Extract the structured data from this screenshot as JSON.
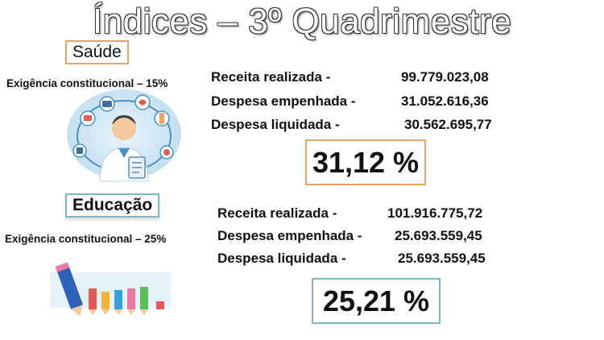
{
  "title": "Índices – 3º Quadrimestre",
  "saude": {
    "label": "Saúde",
    "requirement": "Exigência constitucional – 15%",
    "rows": [
      {
        "label": "Receita realizada  -",
        "value": "99.779.023,08"
      },
      {
        "label": "Despesa empenhada -",
        "value": "31.052.616,36"
      },
      {
        "label": "Despesa liquidada -",
        "value": "30.562.695,77"
      }
    ],
    "percentage": "31,12 %",
    "illustration_icon": "doctor-medical-icons",
    "accent_color": "#e8a367"
  },
  "educacao": {
    "label": "Educação",
    "requirement": "Exigência constitucional – 25%",
    "rows": [
      {
        "label": "Receita realizada  -",
        "value": "101.916.775,72"
      },
      {
        "label": "Despesa empenhada -",
        "value": "25.693.559,45"
      },
      {
        "label": "Despesa liquidada -",
        "value": "25.693.559,45"
      }
    ],
    "percentage": "25,21 %",
    "illustration_icon": "pencil-characters",
    "accent_color": "#7fb6c4"
  }
}
